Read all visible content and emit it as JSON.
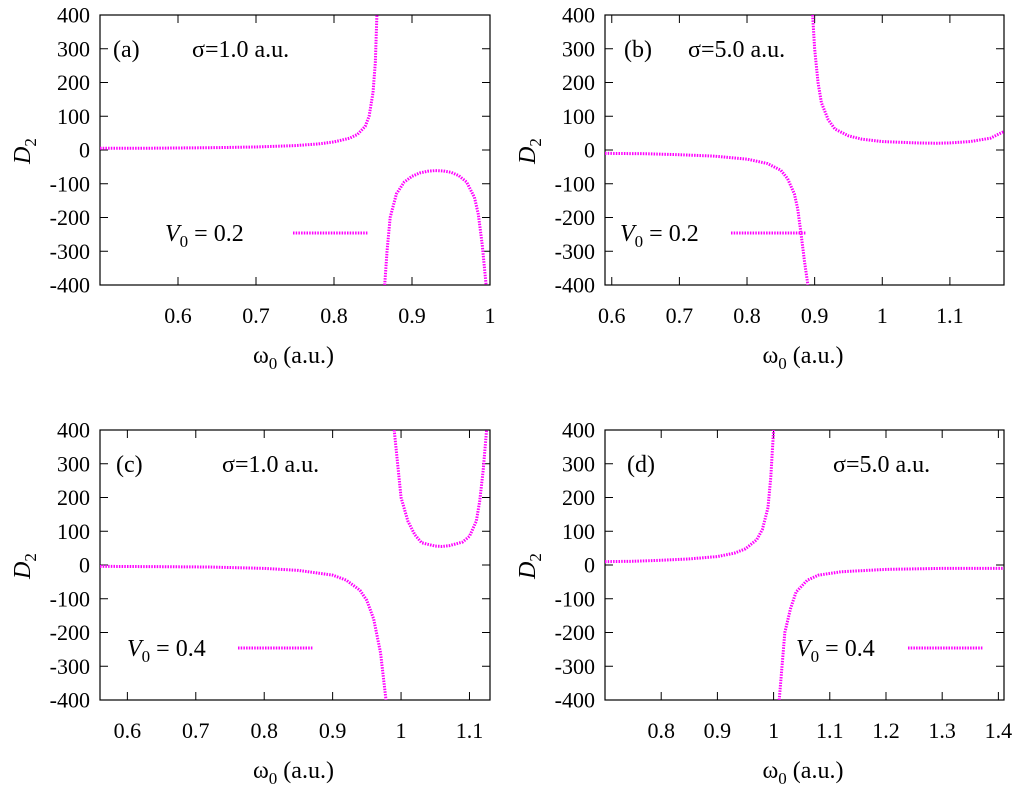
{
  "chart_data": [
    {
      "panel": "(a)",
      "type": "line",
      "sigma_text": "σ=1.0 a.u.",
      "legend": {
        "V": "V",
        "sub": "0",
        "rest": " = 0.2"
      },
      "ylabel": {
        "main": "D",
        "sub": "2"
      },
      "xlabel": {
        "main": "ω",
        "sub": "0",
        "rest": " (a.u.)"
      },
      "xlim": [
        0.5,
        1.0
      ],
      "ylim": [
        -400,
        400
      ],
      "xticks": [
        0.6,
        0.7,
        0.8,
        0.9,
        1
      ],
      "xtick_labels": [
        "0.6",
        "0.7",
        "0.8",
        "0.9",
        "1"
      ],
      "yticks": [
        -400,
        -300,
        -200,
        -100,
        0,
        100,
        200,
        300,
        400
      ],
      "ytick_labels": [
        "-400",
        "-300",
        "-200",
        "-100",
        "0",
        "100",
        "200",
        "300",
        "400"
      ],
      "color": "#ff00ff",
      "series": [
        {
          "segments": [
            [
              [
                0.5,
                5
              ],
              [
                0.55,
                5
              ],
              [
                0.6,
                6
              ],
              [
                0.65,
                7
              ],
              [
                0.7,
                9
              ],
              [
                0.75,
                13
              ],
              [
                0.78,
                18
              ],
              [
                0.8,
                24
              ],
              [
                0.82,
                35
              ],
              [
                0.83,
                46
              ],
              [
                0.84,
                70
              ],
              [
                0.845,
                100
              ],
              [
                0.85,
                170
              ],
              [
                0.853,
                260
              ],
              [
                0.855,
                400
              ]
            ],
            [
              [
                0.865,
                -400
              ],
              [
                0.868,
                -300
              ],
              [
                0.872,
                -200
              ],
              [
                0.88,
                -130
              ],
              [
                0.89,
                -95
              ],
              [
                0.9,
                -78
              ],
              [
                0.91,
                -68
              ],
              [
                0.92,
                -63
              ],
              [
                0.93,
                -61
              ],
              [
                0.94,
                -62
              ],
              [
                0.95,
                -66
              ],
              [
                0.96,
                -76
              ],
              [
                0.97,
                -95
              ],
              [
                0.98,
                -140
              ],
              [
                0.985,
                -190
              ],
              [
                0.99,
                -280
              ],
              [
                0.995,
                -400
              ]
            ]
          ]
        }
      ]
    },
    {
      "panel": "(b)",
      "type": "line",
      "sigma_text": "σ=5.0 a.u.",
      "legend": {
        "V": "V",
        "sub": "0",
        "rest": " = 0.2"
      },
      "ylabel": {
        "main": "D",
        "sub": "2"
      },
      "xlabel": {
        "main": "ω",
        "sub": "0",
        "rest": " (a.u.)"
      },
      "xlim": [
        0.59,
        1.18
      ],
      "ylim": [
        -400,
        400
      ],
      "xticks": [
        0.6,
        0.7,
        0.8,
        0.9,
        1,
        1.1
      ],
      "xtick_labels": [
        "0.6",
        "0.7",
        "0.8",
        "0.9",
        "1",
        "1.1"
      ],
      "yticks": [
        -400,
        -300,
        -200,
        -100,
        0,
        100,
        200,
        300,
        400
      ],
      "ytick_labels": [
        "-400",
        "-300",
        "-200",
        "-100",
        "0",
        "100",
        "200",
        "300",
        "400"
      ],
      "color": "#ff00ff",
      "series": [
        {
          "segments": [
            [
              [
                0.59,
                -10
              ],
              [
                0.65,
                -11
              ],
              [
                0.7,
                -14
              ],
              [
                0.75,
                -18
              ],
              [
                0.8,
                -27
              ],
              [
                0.83,
                -40
              ],
              [
                0.85,
                -60
              ],
              [
                0.86,
                -85
              ],
              [
                0.87,
                -130
              ],
              [
                0.875,
                -175
              ],
              [
                0.88,
                -250
              ],
              [
                0.885,
                -330
              ],
              [
                0.89,
                -400
              ]
            ],
            [
              [
                0.897,
                400
              ],
              [
                0.9,
                300
              ],
              [
                0.905,
                200
              ],
              [
                0.91,
                140
              ],
              [
                0.92,
                90
              ],
              [
                0.93,
                62
              ],
              [
                0.95,
                42
              ],
              [
                0.97,
                32
              ],
              [
                1.0,
                25
              ],
              [
                1.05,
                21
              ],
              [
                1.08,
                20
              ],
              [
                1.1,
                21
              ],
              [
                1.13,
                25
              ],
              [
                1.16,
                35
              ],
              [
                1.18,
                55
              ]
            ]
          ]
        }
      ]
    },
    {
      "panel": "(c)",
      "type": "line",
      "sigma_text": "σ=1.0 a.u.",
      "legend": {
        "V": "V",
        "sub": "0",
        "rest": " = 0.4"
      },
      "ylabel": {
        "main": "D",
        "sub": "2"
      },
      "xlabel": {
        "main": "ω",
        "sub": "0",
        "rest": " (a.u.)"
      },
      "xlim": [
        0.56,
        1.13
      ],
      "ylim": [
        -400,
        400
      ],
      "xticks": [
        0.6,
        0.7,
        0.8,
        0.9,
        1,
        1.1
      ],
      "xtick_labels": [
        "0.6",
        "0.7",
        "0.8",
        "0.9",
        "1",
        "1.1"
      ],
      "yticks": [
        -400,
        -300,
        -200,
        -100,
        0,
        100,
        200,
        300,
        400
      ],
      "ytick_labels": [
        "-400",
        "-300",
        "-200",
        "-100",
        "0",
        "100",
        "200",
        "300",
        "400"
      ],
      "color": "#ff00ff",
      "series": [
        {
          "segments": [
            [
              [
                0.56,
                -4
              ],
              [
                0.65,
                -5
              ],
              [
                0.72,
                -6
              ],
              [
                0.8,
                -10
              ],
              [
                0.85,
                -16
              ],
              [
                0.9,
                -30
              ],
              [
                0.92,
                -45
              ],
              [
                0.94,
                -75
              ],
              [
                0.95,
                -105
              ],
              [
                0.96,
                -160
              ],
              [
                0.97,
                -260
              ],
              [
                0.978,
                -400
              ]
            ],
            [
              [
                0.99,
                400
              ],
              [
                0.995,
                300
              ],
              [
                1.0,
                200
              ],
              [
                1.01,
                130
              ],
              [
                1.02,
                90
              ],
              [
                1.03,
                66
              ],
              [
                1.05,
                56
              ],
              [
                1.06,
                55
              ],
              [
                1.07,
                57
              ],
              [
                1.09,
                68
              ],
              [
                1.1,
                85
              ],
              [
                1.11,
                130
              ],
              [
                1.115,
                190
              ],
              [
                1.12,
                280
              ],
              [
                1.125,
                400
              ]
            ]
          ]
        }
      ]
    },
    {
      "panel": "(d)",
      "type": "line",
      "sigma_text": "σ=5.0 a.u.",
      "legend": {
        "V": "V",
        "sub": "0",
        "rest": " = 0.4"
      },
      "ylabel": {
        "main": "D",
        "sub": "2"
      },
      "xlabel": {
        "main": "ω",
        "sub": "0",
        "rest": " (a.u.)"
      },
      "xlim": [
        0.7,
        1.41
      ],
      "ylim": [
        -400,
        400
      ],
      "xticks": [
        0.8,
        0.9,
        1,
        1.1,
        1.2,
        1.3,
        1.4
      ],
      "xtick_labels": [
        "0.8",
        "0.9",
        "1",
        "1.1",
        "1.2",
        "1.3",
        "1.4"
      ],
      "yticks": [
        -400,
        -300,
        -200,
        -100,
        0,
        100,
        200,
        300,
        400
      ],
      "ytick_labels": [
        "-400",
        "-300",
        "-200",
        "-100",
        "0",
        "100",
        "200",
        "300",
        "400"
      ],
      "color": "#ff00ff",
      "series": [
        {
          "segments": [
            [
              [
                0.7,
                10
              ],
              [
                0.75,
                11
              ],
              [
                0.8,
                14
              ],
              [
                0.85,
                18
              ],
              [
                0.9,
                25
              ],
              [
                0.93,
                35
              ],
              [
                0.95,
                48
              ],
              [
                0.97,
                75
              ],
              [
                0.98,
                105
              ],
              [
                0.99,
                170
              ],
              [
                0.995,
                260
              ],
              [
                1.0,
                400
              ]
            ],
            [
              [
                1.01,
                -400
              ],
              [
                1.015,
                -300
              ],
              [
                1.02,
                -200
              ],
              [
                1.03,
                -130
              ],
              [
                1.04,
                -80
              ],
              [
                1.06,
                -45
              ],
              [
                1.08,
                -30
              ],
              [
                1.12,
                -20
              ],
              [
                1.2,
                -13
              ],
              [
                1.3,
                -10
              ],
              [
                1.41,
                -10
              ]
            ]
          ]
        }
      ]
    }
  ]
}
